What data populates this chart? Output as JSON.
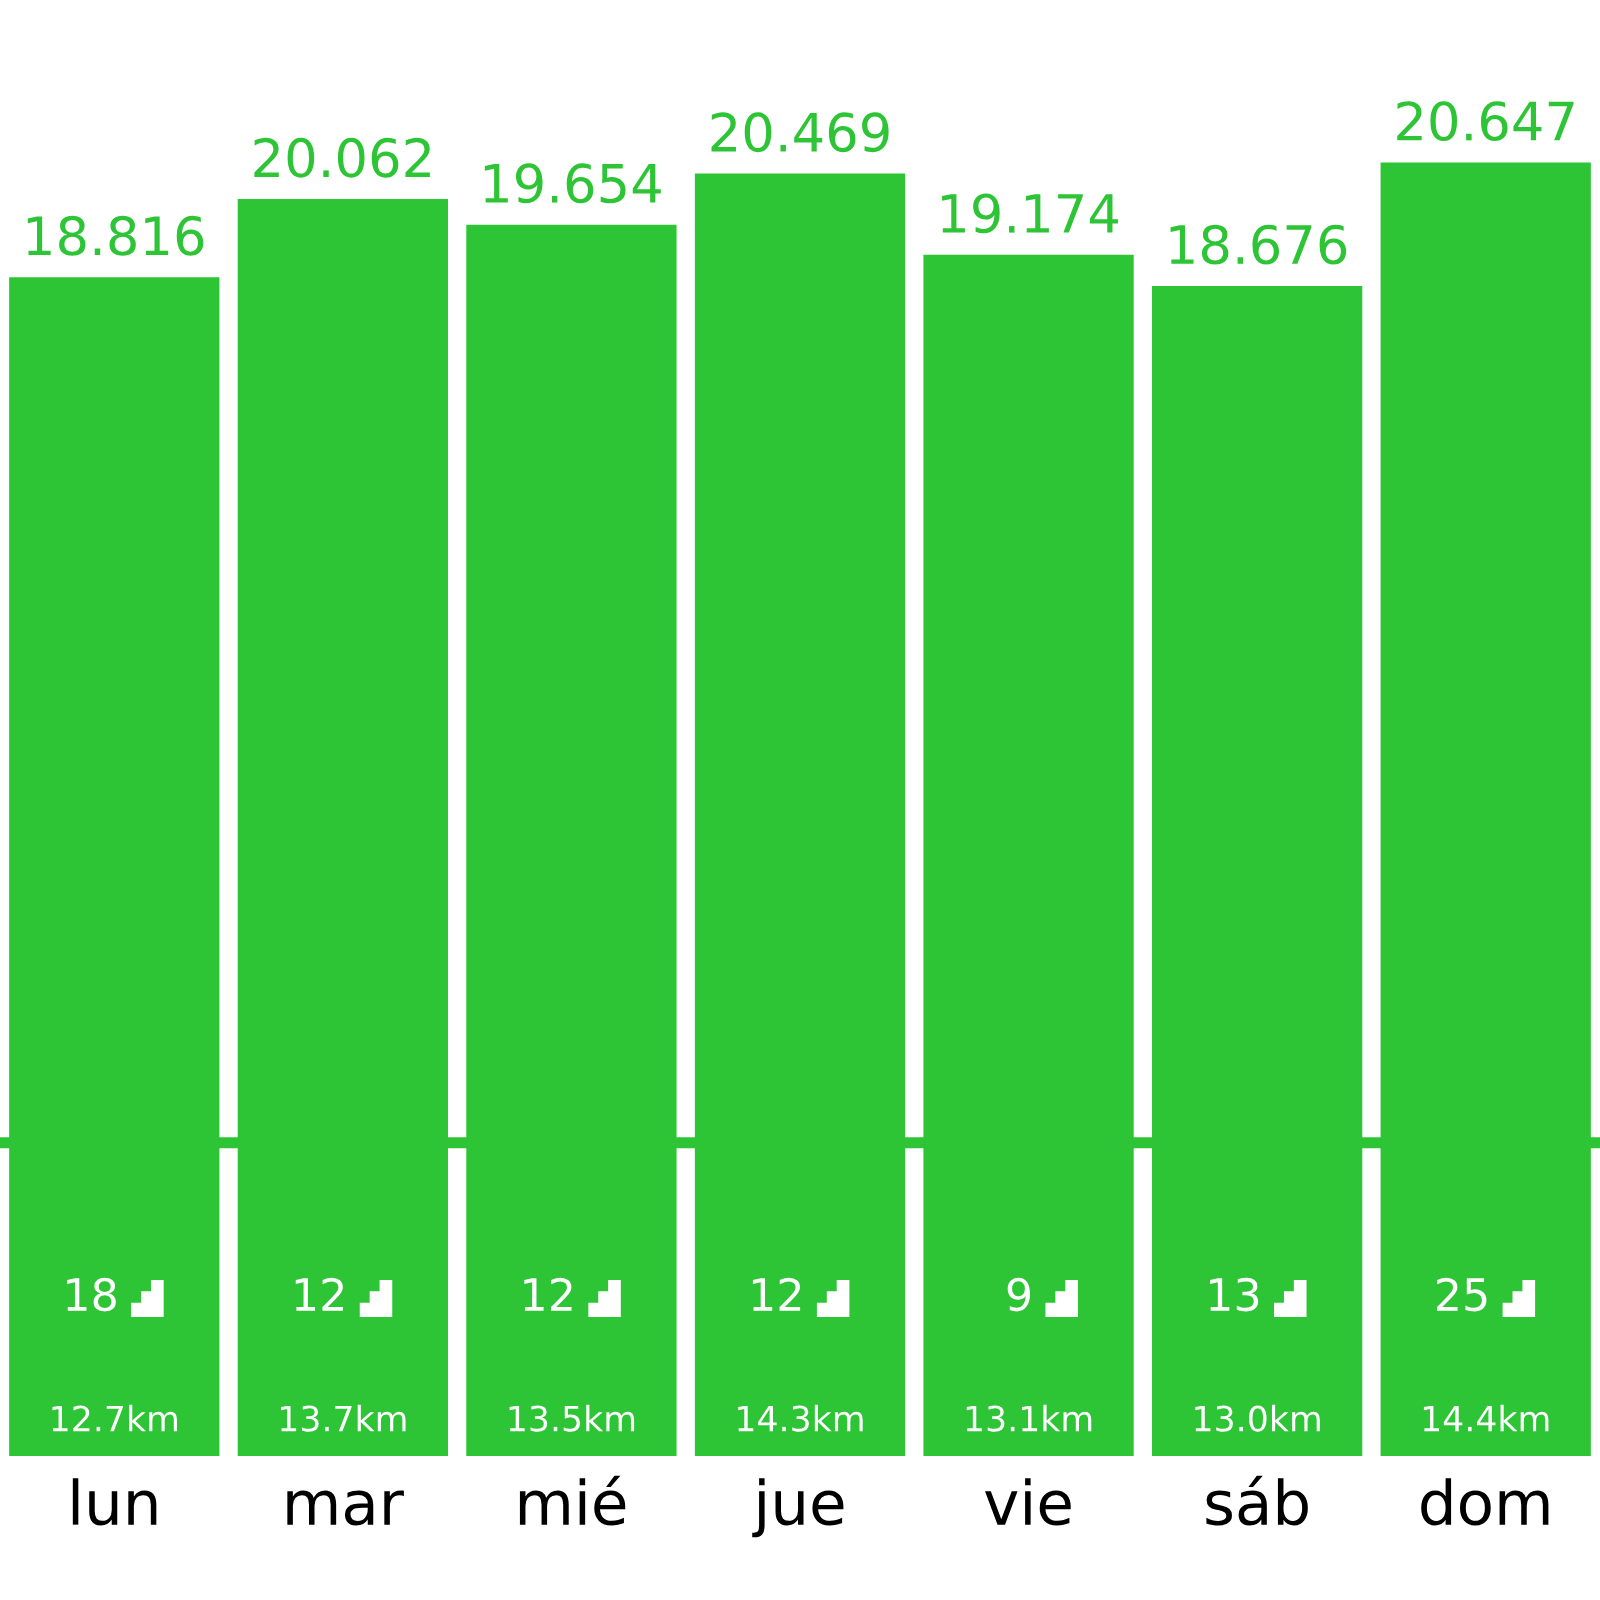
{
  "chart_data": {
    "type": "bar",
    "categories": [
      "lun",
      "mar",
      "mié",
      "jue",
      "vie",
      "sáb",
      "dom"
    ],
    "values": [
      18.816,
      20.062,
      19.654,
      20.469,
      19.174,
      18.676,
      20.647
    ],
    "data_labels": true,
    "color": "#2dc535",
    "ref_lines": [
      {
        "axis": "y",
        "value": 5,
        "color": "#2dc535"
      }
    ],
    "annotations": [
      "18",
      "12.7km",
      "12",
      "13.7km",
      "12",
      "13.5km",
      "12",
      "14.3km",
      "9",
      "13.1km",
      "13",
      "13.0km",
      "25",
      "14.4km"
    ]
  }
}
